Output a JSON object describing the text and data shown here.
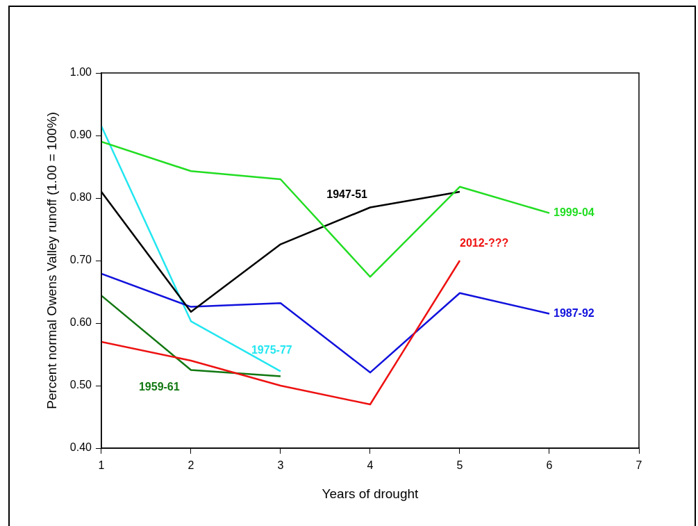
{
  "chart_data": {
    "type": "line",
    "xlabel": "Years of drought",
    "ylabel": "Percent normal Owens Valley runoff (1.00 = 100%)",
    "xlim": [
      1,
      7
    ],
    "xticks": [
      1,
      2,
      3,
      4,
      5,
      6,
      7
    ],
    "ylim": [
      0.4,
      1.0
    ],
    "yticks": [
      {
        "value": 0.4,
        "label": "0.40"
      },
      {
        "value": 0.5,
        "label": "0.50"
      },
      {
        "value": 0.6,
        "label": "0.60"
      },
      {
        "value": 0.7,
        "label": "0.70"
      },
      {
        "value": 0.8,
        "label": "0.80"
      },
      {
        "value": 0.9,
        "label": "0.90"
      },
      {
        "value": 1.0,
        "label": "1.00"
      }
    ],
    "grid": false,
    "legend": false,
    "marker": "none",
    "x": [
      1,
      2,
      3,
      4,
      5,
      6
    ],
    "series": [
      {
        "name": "1999-04",
        "color": "#22dd22",
        "values": [
          0.89,
          0.843,
          0.83,
          0.674,
          0.818,
          0.776
        ]
      },
      {
        "name": "1947-51",
        "color": "#000000",
        "values": [
          0.81,
          0.618,
          0.726,
          0.785,
          0.81,
          null
        ]
      },
      {
        "name": "2012-???",
        "color": "#ee1111",
        "values": [
          0.57,
          0.54,
          0.5,
          0.47,
          0.7,
          null
        ]
      },
      {
        "name": "1987-92",
        "color": "#1111dd",
        "values": [
          0.679,
          0.626,
          0.632,
          0.521,
          0.648,
          0.615
        ]
      },
      {
        "name": "1975-77",
        "color": "#22e6f0",
        "values": [
          0.915,
          0.603,
          0.523,
          null,
          null,
          null
        ]
      },
      {
        "name": "1959-61",
        "color": "#117711",
        "values": [
          0.644,
          0.525,
          0.515,
          null,
          null,
          null
        ]
      }
    ]
  }
}
